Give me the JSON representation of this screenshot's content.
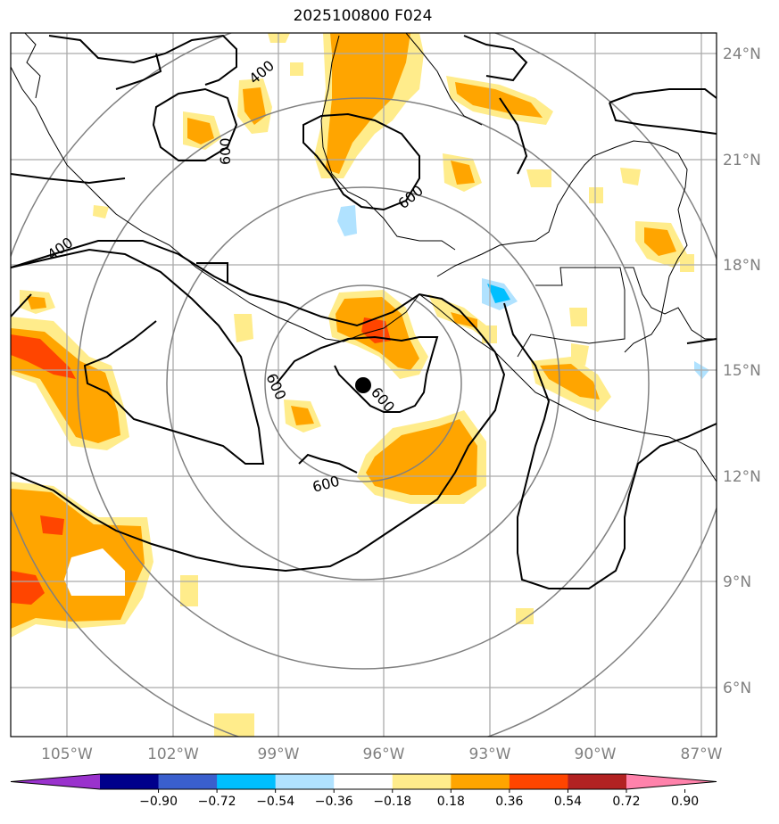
{
  "title": "2025100800 F024",
  "lat_labels": [
    "24°N",
    "21°N",
    "18°N",
    "15°N",
    "12°N",
    "9°N",
    "6°N"
  ],
  "lon_labels": [
    "105°W",
    "102°W",
    "99°W",
    "96°W",
    "93°W",
    "90°W",
    "87°W"
  ],
  "contour_labels": [
    "400",
    "600",
    "600",
    "400",
    "600",
    "600",
    "600"
  ],
  "colorbar": {
    "colors": [
      "#9a32cd",
      "#00008b",
      "#3a5fcd",
      "#00bfff",
      "#b0e2ff",
      "#ffffff",
      "#ffec8b",
      "#ffa500",
      "#ff4500",
      "#b22222",
      "#ff82ab"
    ],
    "tick_labels": [
      "−0.90",
      "−0.72",
      "−0.54",
      "−0.36",
      "−0.18",
      "0.18",
      "0.36",
      "0.54",
      "0.72",
      "0.90"
    ]
  },
  "storm_center": {
    "lat": 14.6,
    "lon": -96.6
  },
  "range_rings": "concentric"
}
